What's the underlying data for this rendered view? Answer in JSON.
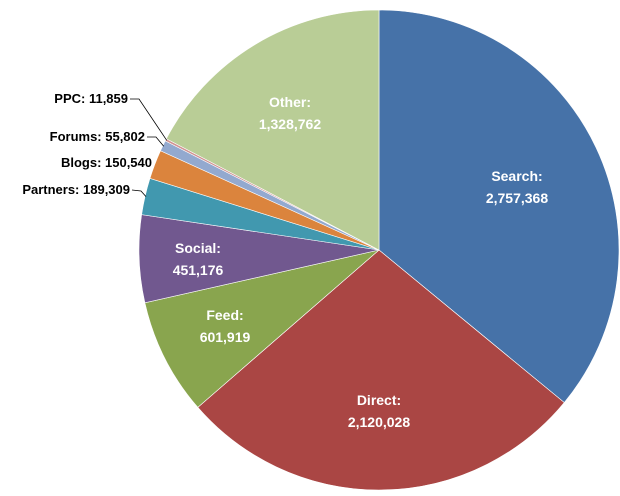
{
  "chart_data": {
    "type": "pie",
    "title": "",
    "start_angle_deg": 0,
    "direction": "clockwise",
    "slices": [
      {
        "name": "Search",
        "value": 2757368,
        "label": "Search:",
        "value_text": "2,757,368",
        "color": "#4672A8",
        "label_pos": "inside"
      },
      {
        "name": "Direct",
        "value": 2120028,
        "label": "Direct:",
        "value_text": "2,120,028",
        "color": "#AA4644",
        "label_pos": "inside"
      },
      {
        "name": "Feed",
        "value": 601919,
        "label": "Feed:",
        "value_text": "601,919",
        "color": "#89A54E",
        "label_pos": "inside"
      },
      {
        "name": "Social",
        "value": 451176,
        "label": "Social:",
        "value_text": "451,176",
        "color": "#71588F",
        "label_pos": "inside"
      },
      {
        "name": "Partners",
        "value": 189309,
        "label": "Partners:",
        "value_text": "189,309",
        "color": "#4198AF",
        "label_pos": "outside"
      },
      {
        "name": "Blogs",
        "value": 150540,
        "label": "Blogs:",
        "value_text": "150,540",
        "color": "#DB843D",
        "label_pos": "outside"
      },
      {
        "name": "Forums",
        "value": 55802,
        "label": "Forums:",
        "value_text": "55,802",
        "color": "#93A9CF",
        "label_pos": "outside"
      },
      {
        "name": "PPC",
        "value": 11859,
        "label": "PPC:",
        "value_text": "11,859",
        "color": "#D19392",
        "label_pos": "outside"
      },
      {
        "name": "Other",
        "value": 1328762,
        "label": "Other:",
        "value_text": "1,328,762",
        "color": "#B9CD96",
        "label_pos": "inside"
      }
    ],
    "legend": "none",
    "xlabel": "",
    "ylabel": ""
  },
  "labels": {
    "search": {
      "name": "Search:",
      "value": "2,757,368"
    },
    "direct": {
      "name": "Direct:",
      "value": "2,120,028"
    },
    "feed": {
      "name": "Feed:",
      "value": "601,919"
    },
    "social": {
      "name": "Social:",
      "value": "451,176"
    },
    "other": {
      "name": "Other:",
      "value": "1,328,762"
    },
    "partners": "Partners: 189,309",
    "blogs": "Blogs: 150,540",
    "forums": "Forums: 55,802",
    "ppc": "PPC: 11,859"
  }
}
